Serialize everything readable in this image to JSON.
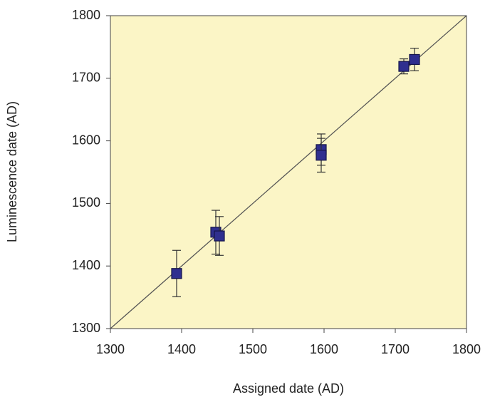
{
  "chart_data": {
    "type": "scatter",
    "x_label": "Assigned date (AD)",
    "y_label": "Luminescence date (AD)",
    "x": [
      1393,
      1448,
      1453,
      1596,
      1596,
      1712,
      1727
    ],
    "y": [
      1388,
      1454,
      1448,
      1586,
      1577,
      1719,
      1730
    ],
    "yerr": [
      37,
      35,
      31,
      25,
      27,
      12,
      18
    ],
    "color": "#2f2f8f",
    "edge_color": "#15154a",
    "error_color": "#333",
    "plot_background": "#fbf5c6",
    "xlim": [
      1300,
      1800
    ],
    "ylim": [
      1300,
      1800
    ],
    "xticks": [
      1300,
      1400,
      1500,
      1600,
      1700,
      1800
    ],
    "yticks": [
      1300,
      1400,
      1500,
      1600,
      1700,
      1800
    ]
  }
}
